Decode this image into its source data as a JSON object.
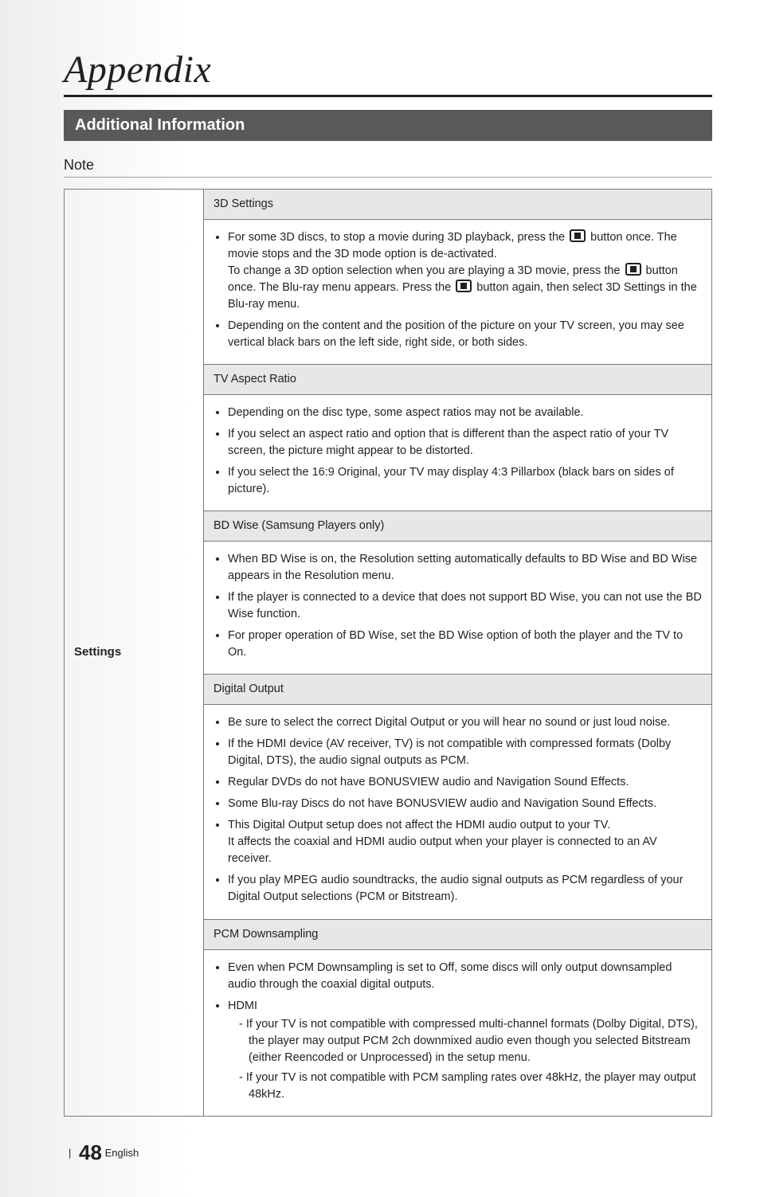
{
  "chapter": {
    "title": "Appendix"
  },
  "banner": {
    "text": "Additional Information"
  },
  "note_heading": "Note",
  "settings_label": "Settings",
  "sections": {
    "three_d": {
      "header": "3D Settings",
      "b1a": "For some 3D discs, to stop a movie during 3D playback, press the ",
      "b1b": " button once. The movie stops and the 3D mode option is de-activated.",
      "b1c": "To change a 3D option selection when you are playing a 3D movie, press the ",
      "b1d": " button once. The Blu-ray menu appears. Press the ",
      "b1e": " button again, then select 3D Settings in the Blu-ray menu.",
      "b2": "Depending on the content and the position of the picture on your TV screen, you may see vertical black bars on the left side, right side, or both sides."
    },
    "aspect": {
      "header": "TV Aspect Ratio",
      "b1": "Depending on the disc type, some aspect ratios may not be available.",
      "b2": "If you select an aspect ratio and option that is different than the aspect ratio of your TV screen, the picture might appear to be distorted.",
      "b3": "If you select the 16:9 Original, your TV may display 4:3 Pillarbox (black bars on sides of picture)."
    },
    "bdwise": {
      "header": "BD Wise (Samsung Players only)",
      "b1": "When BD Wise is on, the Resolution setting automatically defaults to BD Wise and BD Wise appears in the Resolution menu.",
      "b2": "If the player is connected to a device that does not support BD Wise, you can not use the BD Wise function.",
      "b3": "For proper operation of BD Wise, set the BD Wise option of both the player and the TV to On."
    },
    "digital": {
      "header": "Digital Output",
      "b1": "Be sure to select the correct Digital Output or you will hear no sound or just loud noise.",
      "b2": "If the HDMI device (AV receiver, TV) is not compatible with compressed formats (Dolby Digital, DTS), the audio signal outputs as PCM.",
      "b3": "Regular DVDs do not have BONUSVIEW audio and Navigation Sound Effects.",
      "b4": "Some Blu-ray Discs do not have BONUSVIEW audio and Navigation Sound Effects.",
      "b5": "This Digital Output setup does not affect the HDMI audio output to your TV.",
      "b5b": "It affects the coaxial and HDMI audio output when your player is connected to an AV receiver.",
      "b6": "If you play MPEG audio soundtracks, the audio signal outputs as PCM regardless of your Digital Output selections (PCM or Bitstream)."
    },
    "pcm": {
      "header": "PCM Downsampling",
      "b1": "Even when PCM Downsampling is set to Off, some discs will only output downsampled audio through the coaxial digital outputs.",
      "b2": "HDMI",
      "d1": "If your TV is not compatible with compressed multi-channel formats (Dolby Digital, DTS), the player may output PCM 2ch downmixed audio even though you selected Bitstream (either Reencoded or Unprocessed) in the setup menu.",
      "d2": "If your TV is not compatible with PCM sampling rates over 48kHz, the player may output 48kHz."
    }
  },
  "footer": {
    "page": "48",
    "lang": "English"
  }
}
